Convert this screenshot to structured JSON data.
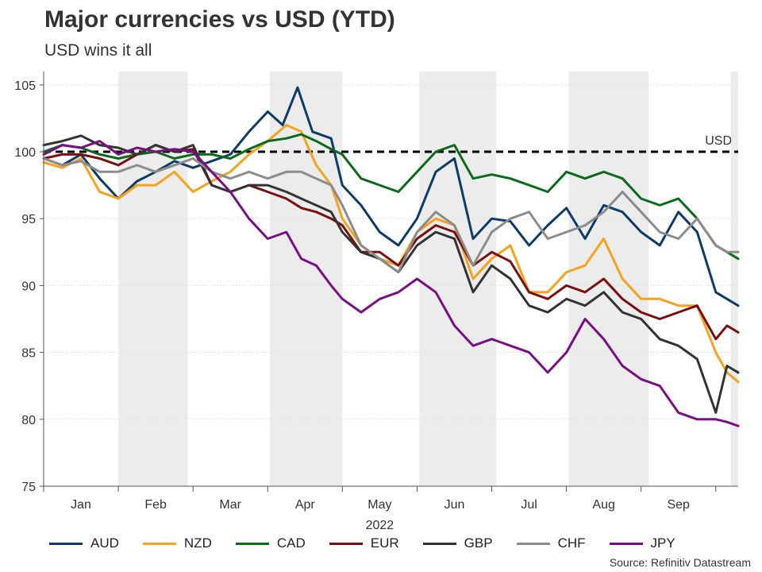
{
  "title": "Major currencies vs USD (YTD)",
  "subtitle": "USD wins it all",
  "source": "Source: Refinitiv Datastream",
  "chart_data": {
    "type": "line",
    "title": "Major currencies vs USD (YTD)",
    "subtitle": "USD wins it all",
    "xlabel": "2022",
    "ylabel": "",
    "xlim": [
      0,
      9.3
    ],
    "ylim": [
      75,
      106
    ],
    "yticks": [
      "75",
      "80",
      "85",
      "90",
      "95",
      "100",
      "105"
    ],
    "ytick_values": [
      75,
      80,
      85,
      90,
      95,
      100,
      105
    ],
    "months": [
      "Jan",
      "Feb",
      "Mar",
      "Apr",
      "May",
      "Jun",
      "Jul",
      "Aug",
      "Sep"
    ],
    "year_label": "2022",
    "shaded_months": [
      [
        1.0,
        1.93
      ],
      [
        3.03,
        4.0
      ],
      [
        5.03,
        6.06
      ],
      [
        7.03,
        8.1
      ],
      [
        9.2,
        9.3
      ]
    ],
    "reference_line": {
      "value": 100,
      "label": "USD"
    },
    "grid": true,
    "legend_position": "bottom",
    "series": [
      {
        "name": "AUD",
        "color": "#0d3b6a",
        "x": [
          0,
          0.25,
          0.5,
          0.75,
          1.0,
          1.25,
          1.5,
          1.75,
          2.0,
          2.25,
          2.5,
          2.75,
          3.0,
          3.2,
          3.4,
          3.6,
          3.85,
          4.0,
          4.25,
          4.5,
          4.75,
          5.0,
          5.25,
          5.5,
          5.75,
          6.0,
          6.25,
          6.5,
          6.75,
          7.0,
          7.25,
          7.5,
          7.75,
          8.0,
          8.25,
          8.5,
          8.75,
          9.0,
          9.15,
          9.3
        ],
        "values": [
          99.5,
          99.0,
          99.8,
          98.0,
          96.5,
          97.8,
          98.5,
          99.3,
          98.8,
          99.3,
          99.8,
          101.5,
          103.0,
          102.0,
          104.8,
          101.5,
          101.0,
          97.5,
          96.0,
          94.0,
          93.0,
          95.0,
          98.5,
          99.5,
          93.5,
          95.0,
          94.8,
          93.0,
          94.5,
          95.8,
          93.5,
          96.0,
          95.5,
          94.0,
          93.0,
          95.5,
          94.0,
          89.5,
          89.0,
          88.5
        ]
      },
      {
        "name": "NZD",
        "color": "#f7a21b",
        "x": [
          0,
          0.25,
          0.5,
          0.75,
          1.0,
          1.25,
          1.5,
          1.75,
          2.0,
          2.25,
          2.5,
          2.75,
          3.0,
          3.25,
          3.45,
          3.65,
          3.85,
          4.0,
          4.25,
          4.5,
          4.75,
          5.0,
          5.25,
          5.5,
          5.75,
          6.0,
          6.25,
          6.5,
          6.75,
          7.0,
          7.25,
          7.5,
          7.75,
          8.0,
          8.25,
          8.5,
          8.75,
          9.0,
          9.15,
          9.3
        ],
        "values": [
          99.2,
          98.8,
          99.5,
          97.0,
          96.5,
          97.5,
          97.5,
          98.5,
          97.0,
          97.8,
          98.5,
          99.8,
          100.8,
          102.0,
          101.5,
          99.0,
          97.5,
          95.0,
          93.0,
          92.0,
          91.5,
          94.0,
          95.0,
          94.5,
          90.5,
          92.0,
          93.0,
          89.5,
          89.5,
          91.0,
          91.5,
          93.5,
          90.5,
          89.0,
          89.0,
          88.5,
          88.5,
          85.0,
          83.5,
          82.8
        ]
      },
      {
        "name": "CAD",
        "color": "#0a6b1a",
        "x": [
          0,
          0.25,
          0.5,
          0.75,
          1.0,
          1.25,
          1.5,
          1.75,
          2.0,
          2.25,
          2.5,
          2.75,
          3.0,
          3.25,
          3.45,
          3.65,
          3.85,
          4.0,
          4.25,
          4.5,
          4.75,
          5.0,
          5.25,
          5.5,
          5.75,
          6.0,
          6.25,
          6.5,
          6.75,
          7.0,
          7.25,
          7.5,
          7.75,
          8.0,
          8.25,
          8.5,
          8.75,
          9.0,
          9.15,
          9.3
        ],
        "values": [
          100.0,
          100.5,
          100.3,
          99.8,
          99.5,
          99.8,
          100.0,
          99.5,
          99.8,
          99.8,
          99.5,
          100.2,
          100.8,
          101.0,
          101.3,
          100.8,
          100.2,
          99.8,
          98.0,
          97.5,
          97.0,
          98.5,
          100.0,
          100.5,
          98.0,
          98.3,
          98.0,
          97.5,
          97.0,
          98.5,
          98.0,
          98.5,
          98.0,
          96.5,
          96.0,
          96.5,
          95.0,
          93.0,
          92.5,
          92.0
        ]
      },
      {
        "name": "EUR",
        "color": "#7a0f0f",
        "x": [
          0,
          0.25,
          0.5,
          0.75,
          1.0,
          1.25,
          1.5,
          1.75,
          2.0,
          2.25,
          2.5,
          2.75,
          3.0,
          3.25,
          3.45,
          3.65,
          3.85,
          4.0,
          4.25,
          4.5,
          4.75,
          5.0,
          5.25,
          5.5,
          5.75,
          6.0,
          6.25,
          6.5,
          6.75,
          7.0,
          7.25,
          7.5,
          7.75,
          8.0,
          8.25,
          8.5,
          8.75,
          9.0,
          9.15,
          9.3
        ],
        "values": [
          99.5,
          99.8,
          99.8,
          99.5,
          99.0,
          99.8,
          100.5,
          100.0,
          100.2,
          97.5,
          97.0,
          97.5,
          97.0,
          96.5,
          95.8,
          95.5,
          95.0,
          94.5,
          92.5,
          92.5,
          91.5,
          93.5,
          94.5,
          94.0,
          91.5,
          92.5,
          91.8,
          89.5,
          89.0,
          90.0,
          89.5,
          90.5,
          89.0,
          88.0,
          87.5,
          88.0,
          88.5,
          86.0,
          87.0,
          86.5
        ]
      },
      {
        "name": "GBP",
        "color": "#333333",
        "x": [
          0,
          0.25,
          0.5,
          0.75,
          1.0,
          1.25,
          1.5,
          1.75,
          2.0,
          2.25,
          2.5,
          2.75,
          3.0,
          3.25,
          3.45,
          3.65,
          3.85,
          4.0,
          4.25,
          4.5,
          4.75,
          5.0,
          5.25,
          5.5,
          5.75,
          6.0,
          6.25,
          6.5,
          6.75,
          7.0,
          7.25,
          7.5,
          7.75,
          8.0,
          8.25,
          8.5,
          8.75,
          9.0,
          9.15,
          9.3
        ],
        "values": [
          100.5,
          100.8,
          101.2,
          100.5,
          100.3,
          99.8,
          100.5,
          100.0,
          100.5,
          97.5,
          97.0,
          97.5,
          97.5,
          97.0,
          96.5,
          96.0,
          95.5,
          94.0,
          92.5,
          92.0,
          91.0,
          93.0,
          94.0,
          93.5,
          89.5,
          91.5,
          90.5,
          88.5,
          88.0,
          89.0,
          88.5,
          89.5,
          88.0,
          87.5,
          86.0,
          85.5,
          84.5,
          80.5,
          84.0,
          83.5
        ]
      },
      {
        "name": "CHF",
        "color": "#8c8c8c",
        "x": [
          0,
          0.25,
          0.5,
          0.75,
          1.0,
          1.25,
          1.5,
          1.75,
          2.0,
          2.25,
          2.5,
          2.75,
          3.0,
          3.25,
          3.45,
          3.65,
          3.85,
          4.0,
          4.25,
          4.5,
          4.75,
          5.0,
          5.25,
          5.5,
          5.75,
          6.0,
          6.25,
          6.5,
          6.75,
          7.0,
          7.25,
          7.5,
          7.75,
          8.0,
          8.25,
          8.5,
          8.75,
          9.0,
          9.15,
          9.3
        ],
        "values": [
          99.5,
          99.0,
          99.3,
          98.5,
          98.5,
          99.0,
          98.5,
          99.0,
          99.5,
          98.5,
          98.0,
          98.5,
          98.0,
          98.5,
          98.5,
          98.0,
          97.5,
          96.0,
          93.0,
          92.0,
          91.0,
          94.0,
          95.5,
          94.5,
          91.5,
          94.0,
          95.0,
          95.5,
          93.5,
          94.0,
          94.5,
          95.5,
          97.0,
          95.5,
          94.0,
          93.5,
          95.0,
          93.0,
          92.5,
          92.5
        ]
      },
      {
        "name": "JPY",
        "color": "#7a0f85",
        "x": [
          0,
          0.25,
          0.5,
          0.75,
          1.0,
          1.25,
          1.5,
          1.75,
          2.0,
          2.25,
          2.5,
          2.75,
          3.0,
          3.25,
          3.45,
          3.65,
          3.85,
          4.0,
          4.25,
          4.5,
          4.75,
          5.0,
          5.25,
          5.5,
          5.75,
          6.0,
          6.25,
          6.5,
          6.75,
          7.0,
          7.25,
          7.5,
          7.75,
          8.0,
          8.25,
          8.5,
          8.75,
          9.0,
          9.15,
          9.3
        ],
        "values": [
          99.8,
          100.5,
          100.3,
          100.8,
          99.8,
          100.3,
          100.0,
          100.2,
          100.0,
          98.5,
          97.0,
          95.0,
          93.5,
          94.0,
          92.0,
          91.5,
          90.0,
          89.0,
          88.0,
          89.0,
          89.5,
          90.5,
          89.5,
          87.0,
          85.5,
          86.0,
          85.5,
          85.0,
          83.5,
          85.0,
          87.5,
          86.0,
          84.0,
          83.0,
          82.5,
          80.5,
          80.0,
          80.0,
          79.8,
          79.5
        ]
      }
    ]
  }
}
